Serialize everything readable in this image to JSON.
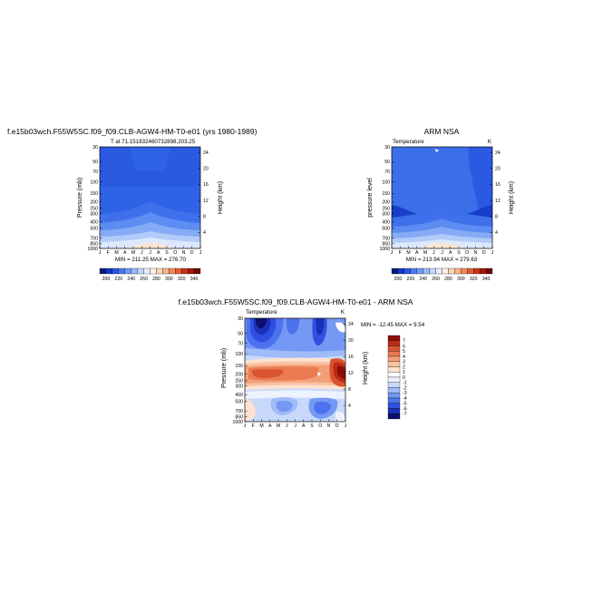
{
  "colors": {
    "panel_base": "#2f63e6",
    "panel_base_right": "#3b6fe9",
    "deep_blue": "#0b1f9e",
    "cbar_temp": [
      "#0a1a7a",
      "#1636c8",
      "#2a57e6",
      "#4b7af0",
      "#6f99f5",
      "#98b8f8",
      "#c2d6fb",
      "#e6eefe",
      "#fff3e8",
      "#fcd5b8",
      "#f8b48c",
      "#f08a5b",
      "#e15c36",
      "#c73418",
      "#a3170a",
      "#6f0606"
    ],
    "cbar_diff": [
      "#0b0f6e",
      "#1c2fb6",
      "#2e4fdf",
      "#4d72ee",
      "#7598f4",
      "#9fbbf8",
      "#c7d8fb",
      "#ecf2fe",
      "#ffffff",
      "#fde2cf",
      "#f9c2a3",
      "#f39f78",
      "#ea7a52",
      "#d9542f",
      "#bd2b14",
      "#8e0d05"
    ]
  },
  "top_left": {
    "title": "f.e15b03wch.F55W5SC.f09_f09.CLB-AGW4-HM-T0-e01 (yrs 1980-1989)",
    "subtitle": "T at 71.151832460732898,203.25",
    "y_label": "Pressure (mb)",
    "y2_label": "Height (km)",
    "y_ticks": [
      "30",
      "50",
      "70",
      "100",
      "150",
      "200",
      "250",
      "300",
      "400",
      "500",
      "700",
      "850",
      "1000"
    ],
    "y2_ticks": [
      "24",
      "20",
      "16",
      "12",
      "8",
      "4"
    ],
    "x_ticks": [
      "J",
      "F",
      "M",
      "A",
      "M",
      "J",
      "J",
      "A",
      "S",
      "O",
      "N",
      "D",
      "J"
    ],
    "minmax": "MIN = 211.25  MAX = 276.70"
  },
  "top_right": {
    "title": "ARM NSA",
    "left_text": "Temperature",
    "right_text": "K",
    "y_label": "pressure level",
    "y2_label": "Height (km)",
    "y_ticks": [
      "30",
      "50",
      "70",
      "100",
      "150",
      "200",
      "250",
      "300",
      "400",
      "500",
      "700",
      "850",
      "1000"
    ],
    "y2_ticks": [
      "24",
      "20",
      "16",
      "12",
      "8",
      "4"
    ],
    "x_ticks": [
      "J",
      "F",
      "M",
      "A",
      "M",
      "J",
      "J",
      "A",
      "S",
      "O",
      "N",
      "D",
      "J"
    ],
    "minmax": "MIN = 213.94  MAX = 279.63"
  },
  "colorbar_temp_labels": [
    "200",
    "220",
    "240",
    "260",
    "280",
    "300",
    "320",
    "340"
  ],
  "bottom": {
    "title": "f.e15b03wch.F55W5SC.f09_f09.CLB-AGW4-HM-T0-e01 - ARM NSA",
    "left_text": "Temperature",
    "right_text": "K",
    "y_label": "Pressure (mb)",
    "y2_label": "Height (km)",
    "y_ticks": [
      "30",
      "50",
      "70",
      "100",
      "150",
      "200",
      "250",
      "300",
      "400",
      "500",
      "700",
      "850",
      "1000"
    ],
    "y2_ticks": [
      "24",
      "20",
      "16",
      "12",
      "8",
      "4"
    ],
    "x_ticks": [
      "J",
      "F",
      "M",
      "A",
      "M",
      "J",
      "J",
      "A",
      "S",
      "O",
      "N",
      "D",
      "J"
    ],
    "minmax": "MIN = -12.45  MAX =   9.54",
    "colorbar_labels": [
      "7",
      "6",
      "5",
      "4",
      "3",
      "2",
      "1",
      "0",
      "-1",
      "-2",
      "-3",
      "-4",
      "-5",
      "-6",
      "-7"
    ]
  },
  "chart_data": [
    {
      "type": "heatmap",
      "title": "f.e15b03wch.F55W5SC.f09_f09.CLB-AGW4-HM-T0-e01 (yrs 1980-1989)",
      "subtitle": "T at 71.151832460732898,203.25",
      "ylabel": "Pressure (mb)",
      "y2label": "Height (km)",
      "x": [
        "J",
        "F",
        "M",
        "A",
        "M",
        "J",
        "J",
        "A",
        "S",
        "O",
        "N",
        "D",
        "J"
      ],
      "y": [
        30,
        50,
        70,
        100,
        150,
        200,
        250,
        300,
        400,
        500,
        700,
        850,
        1000
      ],
      "min": 211.25,
      "max": 276.7,
      "contour_levels": [
        200,
        210,
        220,
        230,
        240,
        250,
        260,
        270,
        280,
        290,
        300,
        310,
        320,
        330,
        340
      ]
    },
    {
      "type": "heatmap",
      "title": "ARM NSA",
      "subtitle": "Temperature",
      "units": "K",
      "ylabel": "pressure level",
      "y2label": "Height (km)",
      "x": [
        "J",
        "F",
        "M",
        "A",
        "M",
        "J",
        "J",
        "A",
        "S",
        "O",
        "N",
        "D",
        "J"
      ],
      "y": [
        30,
        50,
        70,
        100,
        150,
        200,
        250,
        300,
        400,
        500,
        700,
        850,
        1000
      ],
      "min": 213.94,
      "max": 279.63,
      "contour_levels": [
        200,
        210,
        220,
        230,
        240,
        250,
        260,
        270,
        280,
        290,
        300,
        310,
        320,
        330,
        340
      ]
    },
    {
      "type": "heatmap",
      "title": "f.e15b03wch.F55W5SC.f09_f09.CLB-AGW4-HM-T0-e01 - ARM NSA",
      "subtitle": "Temperature",
      "units": "K",
      "ylabel": "Pressure (mb)",
      "y2label": "Height (km)",
      "x": [
        "J",
        "F",
        "M",
        "A",
        "M",
        "J",
        "J",
        "A",
        "S",
        "O",
        "N",
        "D",
        "J"
      ],
      "y": [
        30,
        50,
        70,
        100,
        150,
        200,
        250,
        300,
        400,
        500,
        700,
        850,
        1000
      ],
      "min": -12.45,
      "max": 9.54,
      "contour_levels": [
        -7,
        -6,
        -5,
        -4,
        -3,
        -2,
        -1,
        0,
        1,
        2,
        3,
        4,
        5,
        6,
        7
      ]
    }
  ]
}
